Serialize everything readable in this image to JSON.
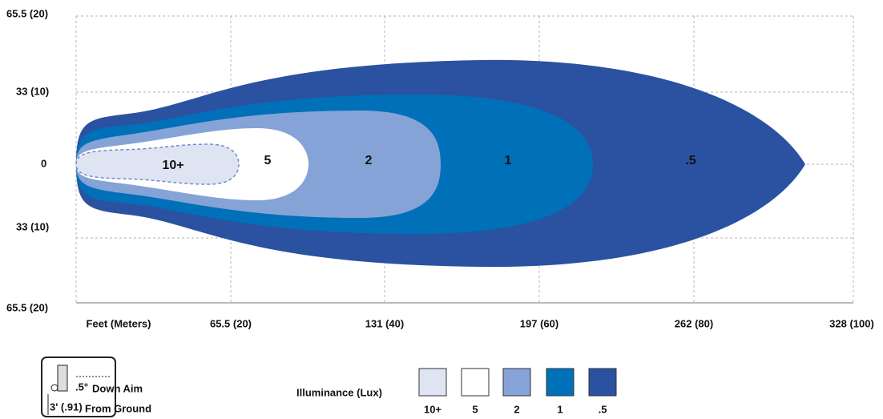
{
  "y_axis_labels": [
    "65.5 (20)",
    "33 (10)",
    "0",
    "33 (10)",
    "65.5 (20)"
  ],
  "x_axis_labels": [
    "Feet (Meters)",
    "65.5 (20)",
    "131 (40)",
    "197 (60)",
    "262 (80)",
    "328 (100)"
  ],
  "zones": [
    "10+",
    "5",
    "2",
    "1",
    ".5"
  ],
  "legend": {
    "title": "Illuminance (Lux)",
    "items": [
      "10+",
      "5",
      "2",
      "1",
      ".5"
    ]
  },
  "icon": {
    "angle": ".5°",
    "angle_note": "Down Aim",
    "height": "3' (.91)",
    "height_note": "From Ground"
  }
}
